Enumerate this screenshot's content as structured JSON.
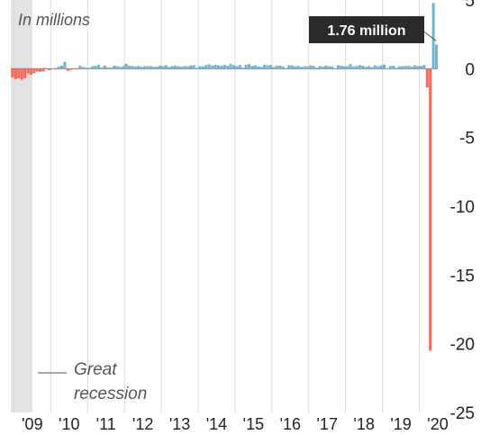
{
  "chart_data": {
    "type": "bar",
    "unit_label": "In millions",
    "y_axis": {
      "min": -25,
      "max": 5,
      "ticks": [
        5,
        0,
        -5,
        -10,
        -15,
        -20,
        -25
      ],
      "position": "right"
    },
    "x_ticks": [
      "'09",
      "'10",
      "'11",
      "'12",
      "'13",
      "'14",
      "'15",
      "'16",
      "'17",
      "'18",
      "'19",
      "'20"
    ],
    "x_range": [
      "2008-12",
      "2020-06"
    ],
    "recession": {
      "start": "2008-12",
      "end": "2009-06",
      "label_line1": "Great",
      "label_line2": "recession"
    },
    "grid": "vertical",
    "series": [
      {
        "x": [
          "2008-12",
          "2009-01",
          "2009-02",
          "2009-03",
          "2009-04",
          "2009-05",
          "2009-06",
          "2009-07",
          "2009-08",
          "2009-09",
          "2009-10",
          "2009-11",
          "2009-12",
          "2010-01",
          "2010-02",
          "2010-03",
          "2010-04",
          "2010-05",
          "2010-06",
          "2010-07",
          "2010-08",
          "2010-09",
          "2010-10",
          "2010-11",
          "2010-12",
          "2011-01",
          "2011-02",
          "2011-03",
          "2011-04",
          "2011-05",
          "2011-06",
          "2011-07",
          "2011-08",
          "2011-09",
          "2011-10",
          "2011-11",
          "2011-12",
          "2012-01",
          "2012-02",
          "2012-03",
          "2012-04",
          "2012-05",
          "2012-06",
          "2012-07",
          "2012-08",
          "2012-09",
          "2012-10",
          "2012-11",
          "2012-12",
          "2013-01",
          "2013-02",
          "2013-03",
          "2013-04",
          "2013-05",
          "2013-06",
          "2013-07",
          "2013-08",
          "2013-09",
          "2013-10",
          "2013-11",
          "2013-12",
          "2014-01",
          "2014-02",
          "2014-03",
          "2014-04",
          "2014-05",
          "2014-06",
          "2014-07",
          "2014-08",
          "2014-09",
          "2014-10",
          "2014-11",
          "2014-12",
          "2015-01",
          "2015-02",
          "2015-03",
          "2015-04",
          "2015-05",
          "2015-06",
          "2015-07",
          "2015-08",
          "2015-09",
          "2015-10",
          "2015-11",
          "2015-12",
          "2016-01",
          "2016-02",
          "2016-03",
          "2016-04",
          "2016-05",
          "2016-06",
          "2016-07",
          "2016-08",
          "2016-09",
          "2016-10",
          "2016-11",
          "2016-12",
          "2017-01",
          "2017-02",
          "2017-03",
          "2017-04",
          "2017-05",
          "2017-06",
          "2017-07",
          "2017-08",
          "2017-09",
          "2017-10",
          "2017-11",
          "2017-12",
          "2018-01",
          "2018-02",
          "2018-03",
          "2018-04",
          "2018-05",
          "2018-06",
          "2018-07",
          "2018-08",
          "2018-09",
          "2018-10",
          "2018-11",
          "2018-12",
          "2019-01",
          "2019-02",
          "2019-03",
          "2019-04",
          "2019-05",
          "2019-06",
          "2019-07",
          "2019-08",
          "2019-09",
          "2019-10",
          "2019-11",
          "2019-12",
          "2020-01",
          "2020-02",
          "2020-03",
          "2020-04",
          "2020-05",
          "2020-06"
        ],
        "values": [
          -0.65,
          -0.75,
          -0.7,
          -0.8,
          -0.7,
          -0.35,
          -0.45,
          -0.33,
          -0.21,
          -0.22,
          -0.2,
          -0.01,
          -0.1,
          0.02,
          -0.05,
          0.17,
          0.23,
          0.5,
          -0.15,
          -0.08,
          -0.04,
          -0.05,
          0.23,
          0.13,
          0.08,
          0.07,
          0.18,
          0.22,
          0.3,
          0.1,
          0.23,
          0.1,
          0.1,
          0.21,
          0.2,
          0.13,
          0.2,
          0.36,
          0.23,
          0.2,
          0.16,
          0.2,
          0.14,
          0.19,
          0.18,
          0.2,
          0.14,
          0.16,
          0.22,
          0.19,
          0.26,
          0.14,
          0.2,
          0.24,
          0.18,
          0.15,
          0.2,
          0.17,
          0.24,
          0.27,
          0.07,
          0.19,
          0.17,
          0.26,
          0.33,
          0.23,
          0.29,
          0.25,
          0.21,
          0.28,
          0.22,
          0.35,
          0.26,
          0.19,
          0.27,
          0.08,
          0.29,
          0.34,
          0.21,
          0.25,
          0.17,
          0.14,
          0.3,
          0.25,
          0.27,
          0.13,
          0.23,
          0.23,
          0.18,
          0.04,
          0.26,
          0.25,
          0.17,
          0.21,
          0.13,
          0.18,
          0.17,
          0.24,
          0.21,
          0.08,
          0.2,
          0.15,
          0.24,
          0.19,
          0.16,
          0.02,
          0.26,
          0.22,
          0.18,
          0.18,
          0.34,
          0.16,
          0.2,
          0.27,
          0.22,
          0.14,
          0.19,
          0.12,
          0.25,
          0.18,
          0.25,
          0.31,
          0.02,
          0.2,
          0.22,
          0.07,
          0.18,
          0.19,
          0.2,
          0.21,
          0.15,
          0.25,
          0.18,
          0.21,
          0.27,
          -1.37,
          -20.5,
          4.78,
          1.76
        ]
      }
    ],
    "colors": {
      "positive": "#74b3cc",
      "negative": "#f26b5b",
      "recession": "#e3e3e3",
      "grid": "#d9d9d9",
      "axis": "#888888",
      "callout": "#2b2b2b"
    },
    "callout": {
      "label": "1.76 million",
      "x": "2020-06",
      "value": 1.76
    }
  }
}
